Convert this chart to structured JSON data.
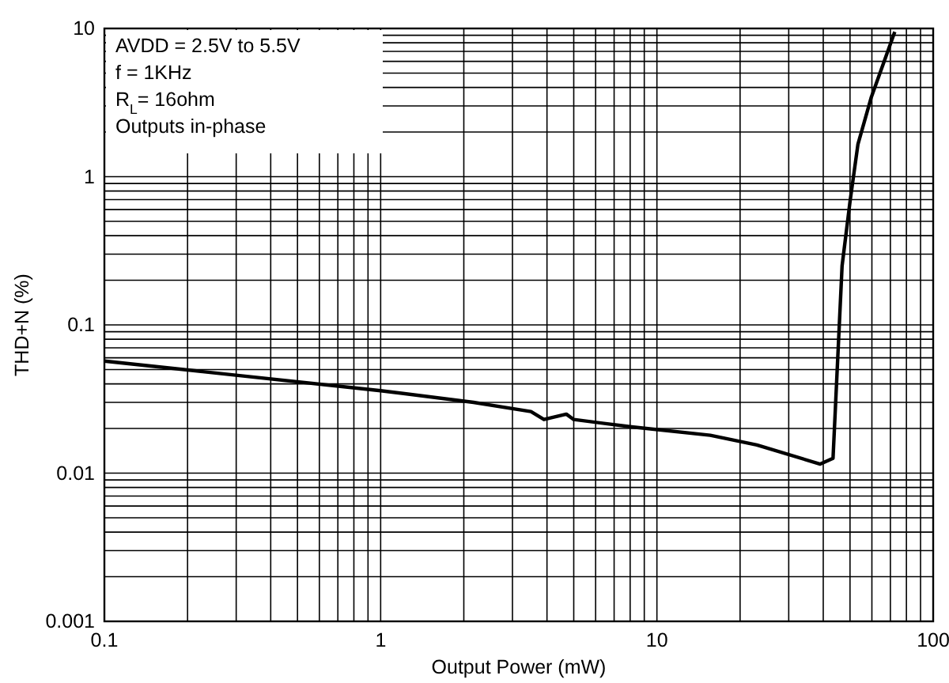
{
  "chart_data": {
    "type": "line",
    "xlabel": "Output Power (mW)",
    "ylabel": "THD+N (%)",
    "annotations": [
      "AVDD = 2.5V to 5.5V",
      "f = 1KHz",
      "R$_{L}$= 16ohm",
      "Outputs in-phase"
    ],
    "log": "xy",
    "grid": true,
    "marker": "none",
    "line_style": "solid",
    "xlim": [
      0.1,
      100
    ],
    "xticks": [
      0.1,
      1,
      10,
      100
    ],
    "ylim": [
      0.001,
      10
    ],
    "yticks": [
      0.001,
      0.01,
      0.1,
      1,
      10
    ],
    "series": [
      {
        "color": "#000000",
        "x": [
          0.1,
          1,
          2.17,
          3.5,
          3.9,
          4.7,
          5,
          8.1,
          15.6,
          23,
          39,
          43.4,
          46.8,
          50,
          53.4,
          59.6,
          72.6
        ],
        "values": [
          0.057,
          0.036,
          0.03,
          0.026,
          0.023,
          0.025,
          0.023,
          0.0205,
          0.018,
          0.0155,
          0.0115,
          0.0126,
          0.25,
          0.68,
          1.65,
          3.4,
          9.5
        ]
      }
    ]
  }
}
